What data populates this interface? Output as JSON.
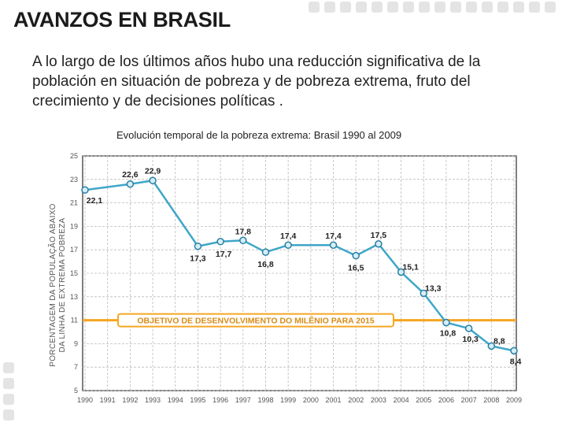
{
  "slide": {
    "title": "AVANZOS EN BRASIL",
    "intro": "A lo largo de los últimos años hubo una reducción significativa de la población en situación de pobreza y de pobreza extrema, fruto del crecimiento y de decisiones políticas .",
    "chart_caption": "Evolución temporal de la pobreza extrema: Brasil 1990 al 2009"
  },
  "chart_data": {
    "type": "line",
    "title": "Evolución temporal de la pobreza extrema: Brasil 1990 al 2009",
    "ylabel": "PORCENTAGEM DA POPULAÇÃO ABAIXO DA LINHA DE EXTREMA POBREZA",
    "xlabel": "",
    "x": [
      "1990",
      "1991",
      "1992",
      "1993",
      "1994",
      "1995",
      "1996",
      "1997",
      "1998",
      "1999",
      "2000",
      "2001",
      "2002",
      "2003",
      "2004",
      "2005",
      "2006",
      "2007",
      "2008",
      "2009"
    ],
    "series": [
      {
        "values": [
          {
            "x": "1990",
            "y": 22.1
          },
          {
            "x": "1992",
            "y": 22.6
          },
          {
            "x": "1993",
            "y": 22.9
          },
          {
            "x": "1995",
            "y": 17.3
          },
          {
            "x": "1996",
            "y": 17.7
          },
          {
            "x": "1997",
            "y": 17.8
          },
          {
            "x": "1998",
            "y": 16.8
          },
          {
            "x": "1999",
            "y": 17.4
          },
          {
            "x": "2001",
            "y": 17.4
          },
          {
            "x": "2002",
            "y": 16.5
          },
          {
            "x": "2003",
            "y": 17.5
          },
          {
            "x": "2004",
            "y": 15.1
          },
          {
            "x": "2005",
            "y": 13.3
          },
          {
            "x": "2006",
            "y": 10.8
          },
          {
            "x": "2007",
            "y": 10.3
          },
          {
            "x": "2008",
            "y": 8.8
          },
          {
            "x": "2009",
            "y": 8.4
          }
        ]
      }
    ],
    "data_labels": [
      "22,1",
      "22,6",
      "22,9",
      "17,3",
      "17,7",
      "17,8",
      "16,8",
      "17,4",
      "17,4",
      "16,5",
      "17,5",
      "15,1",
      "13,3",
      "10,8",
      "10,3",
      "8,8",
      "8,4"
    ],
    "yticks": [
      "5",
      "7",
      "9",
      "11",
      "13",
      "15",
      "17",
      "19",
      "21",
      "23",
      "25"
    ],
    "ylim": [
      5,
      25
    ],
    "target": {
      "value": 11,
      "label": "OBJETIVO DE DESENVOLVIMENTO DO MILÊNIO PARA 2015"
    },
    "grid": true,
    "colors": {
      "line": "#3fa6c8",
      "marker_fill": "#d6eef7",
      "target": "#f5a623",
      "target_text": "#d98a12"
    }
  }
}
